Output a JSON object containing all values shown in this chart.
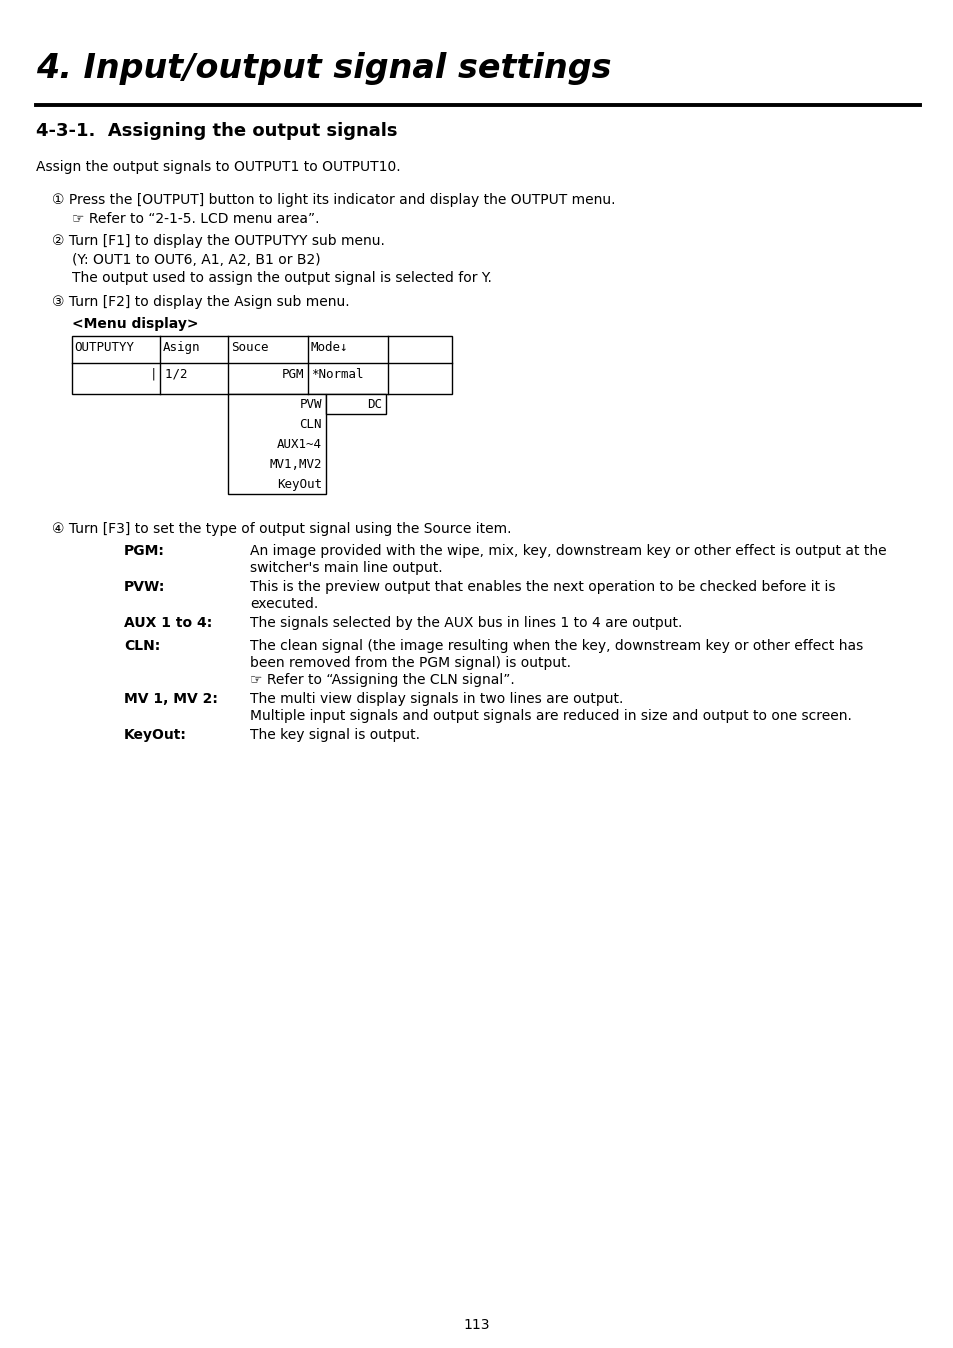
{
  "title": "4. Input/output signal settings",
  "section_title": "4-3-1.  Assigning the output signals",
  "intro_text": "Assign the output signals to OUTPUT1 to OUTPUT10.",
  "background_color": "#ffffff",
  "text_color": "#000000",
  "page_number": "113",
  "step1_main": "① Press the [OUTPUT] button to light its indicator and display the OUTPUT menu.",
  "step1_sub": "☞ Refer to “2-1-5. LCD menu area”.",
  "step2_main": "② Turn [F1] to display the OUTPUTYY sub menu.",
  "step2_sub1": "(Y: OUT1 to OUT6, A1, A2, B1 or B2)",
  "step2_sub2": "The output used to assign the output signal is selected for Y.",
  "step3_main": "③ Turn [F2] to display the Asign sub menu.",
  "menu_label": "<Menu display>",
  "dropdown_items": [
    "PVW",
    "CLN",
    "AUX1~4",
    "MV1,MV2",
    "KeyOut"
  ],
  "dropdown_dc": "DC",
  "step4_main": "④ Turn [F3] to set the type of output signal using the Source item.",
  "descriptions": [
    {
      "label": "PGM:",
      "text1": "An image provided with the wipe, mix, key, downstream key or other effect is output at the",
      "text2": "switcher's main line output.",
      "text3": ""
    },
    {
      "label": "PVW:",
      "text1": "This is the preview output that enables the next operation to be checked before it is",
      "text2": "executed.",
      "text3": ""
    },
    {
      "label": "AUX 1 to 4:",
      "text1": "The signals selected by the AUX bus in lines 1 to 4 are output.",
      "text2": "",
      "text3": ""
    },
    {
      "label": "CLN:",
      "text1": "The clean signal (the image resulting when the key, downstream key or other effect has",
      "text2": "been removed from the PGM signal) is output.",
      "text3": "☞ Refer to “Assigning the CLN signal”."
    },
    {
      "label": "MV 1, MV 2:",
      "text1": "The multi view display signals in two lines are output.",
      "text2": "Multiple input signals and output signals are reduced in size and output to one screen.",
      "text3": ""
    },
    {
      "label": "KeyOut:",
      "text1": "The key signal is output.",
      "text2": "",
      "text3": ""
    }
  ]
}
